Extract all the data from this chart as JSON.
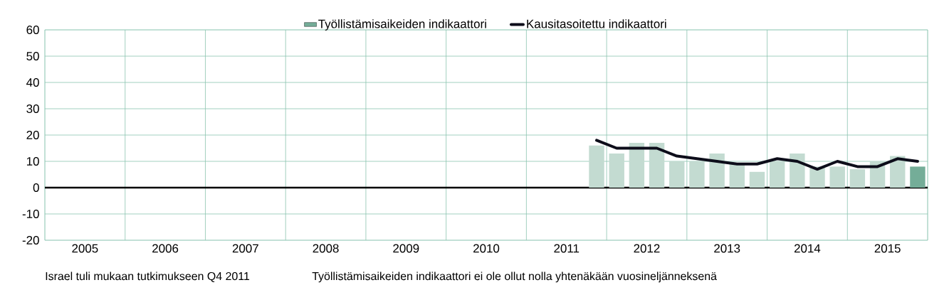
{
  "chart_data": {
    "type": "bar",
    "x": [
      2011.875,
      2012.125,
      2012.375,
      2012.625,
      2012.875,
      2013.125,
      2013.375,
      2013.625,
      2013.875,
      2014.125,
      2014.375,
      2014.625,
      2014.875,
      2015.125,
      2015.375,
      2015.625,
      2015.875
    ],
    "series": [
      {
        "name": "Työllistämisaikeiden indikaattori",
        "color": "#74ad98",
        "colors": [
          "#c3dbd1",
          "#c3dbd1",
          "#c3dbd1",
          "#c3dbd1",
          "#c3dbd1",
          "#c3dbd1",
          "#c3dbd1",
          "#c3dbd1",
          "#c3dbd1",
          "#c3dbd1",
          "#c3dbd1",
          "#c3dbd1",
          "#c3dbd1",
          "#c3dbd1",
          "#c3dbd1",
          "#c3dbd1",
          "#74ad98"
        ],
        "values": [
          16,
          13,
          17,
          17,
          10,
          10,
          13,
          9,
          6,
          10,
          13,
          8,
          8,
          7,
          10,
          12,
          8
        ]
      },
      {
        "name": "Kausitasoitettu indikaattori",
        "type": "line",
        "color": "#0d0d1a",
        "values": [
          18,
          15,
          15,
          15,
          12,
          11,
          10,
          9,
          9,
          11,
          10,
          7,
          10,
          8,
          8,
          11,
          10
        ]
      }
    ],
    "xlim": [
      2005,
      2016
    ],
    "xticks": [
      {
        "value": 2005,
        "label": null
      },
      {
        "value": 2005.5,
        "label": "2005"
      },
      {
        "value": 2006,
        "label": null
      },
      {
        "value": 2006.5,
        "label": "2006"
      },
      {
        "value": 2007,
        "label": null
      },
      {
        "value": 2007.5,
        "label": "2007"
      },
      {
        "value": 2008,
        "label": null
      },
      {
        "value": 2008.5,
        "label": "2008"
      },
      {
        "value": 2009,
        "label": null
      },
      {
        "value": 2009.5,
        "label": "2009"
      },
      {
        "value": 2010,
        "label": null
      },
      {
        "value": 2010.5,
        "label": "2010"
      },
      {
        "value": 2011,
        "label": null
      },
      {
        "value": 2011.5,
        "label": "2011"
      },
      {
        "value": 2012,
        "label": null
      },
      {
        "value": 2012.5,
        "label": "2012"
      },
      {
        "value": 2013,
        "label": null
      },
      {
        "value": 2013.5,
        "label": "2013"
      },
      {
        "value": 2014,
        "label": null
      },
      {
        "value": 2014.5,
        "label": "2014"
      },
      {
        "value": 2015,
        "label": null
      },
      {
        "value": 2015.5,
        "label": "2015"
      },
      {
        "value": 2016,
        "label": null
      }
    ],
    "ylim": [
      -20,
      60
    ],
    "yticks": [
      -20,
      -10,
      0,
      10,
      20,
      30,
      40,
      50,
      60
    ],
    "grid": true,
    "legend": "top",
    "line_style": "solid",
    "marker": "none",
    "ref_lines": [
      {
        "axis": "y",
        "value": 0,
        "color": "#000000"
      }
    ],
    "annotations": [
      "Israel tuli mukaan tutkimukseen Q4 2011",
      "Työllistämisaikeiden indikaattori ei ole ollut nolla yhtenäkään vuosineljänneksenä"
    ]
  }
}
